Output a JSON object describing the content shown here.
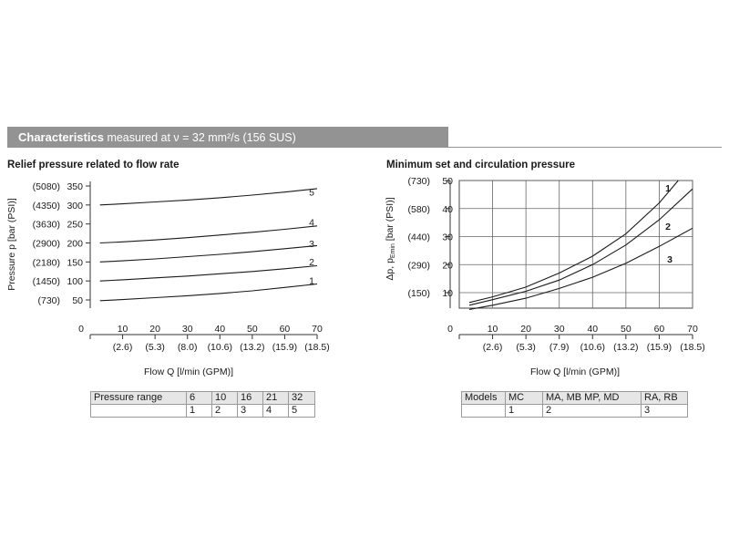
{
  "header": {
    "title": "Characteristics",
    "subtitle": "measured at ν = 32 mm²/s (156 SUS)"
  },
  "charts_meta": {
    "relief": {
      "title": "Relief pressure related to flow rate"
    },
    "minimum": {
      "title": "Minimum set and circulation pressure"
    }
  },
  "chart_data": [
    {
      "type": "line",
      "title": "Relief pressure related to flow rate",
      "xlabel": "Flow Q [l/min (GPM)]",
      "ylabel": "Pressure p [bar (PSI)]",
      "xlim": [
        0,
        70
      ],
      "ylim": [
        0,
        350
      ],
      "x_ticks": [
        10,
        20,
        30,
        40,
        50,
        60,
        70
      ],
      "x_ticks_alt": [
        "(2.6)",
        "(5.3)",
        "(8.0)",
        "(10.6)",
        "(13.2)",
        "(15.9)",
        "(18.5)"
      ],
      "y_ticks": [
        50,
        100,
        150,
        200,
        250,
        300,
        350
      ],
      "y_ticks_alt": [
        "(730)",
        "(1450)",
        "(2180)",
        "(2900)",
        "(3630)",
        "(4350)",
        "(5080)"
      ],
      "origin_label": "0",
      "grid": false,
      "series": [
        {
          "name": "1",
          "x": [
            3,
            10,
            20,
            30,
            40,
            50,
            60,
            70
          ],
          "y": [
            48,
            51,
            56,
            61,
            67,
            74,
            83,
            92
          ]
        },
        {
          "name": "2",
          "x": [
            3,
            10,
            20,
            30,
            40,
            50,
            60,
            70
          ],
          "y": [
            100,
            103,
            108,
            113,
            119,
            125,
            132,
            140
          ]
        },
        {
          "name": "3",
          "x": [
            3,
            10,
            20,
            30,
            40,
            50,
            60,
            70
          ],
          "y": [
            150,
            153,
            158,
            164,
            170,
            177,
            185,
            193
          ]
        },
        {
          "name": "4",
          "x": [
            3,
            10,
            20,
            30,
            40,
            50,
            60,
            70
          ],
          "y": [
            200,
            203,
            208,
            214,
            221,
            228,
            236,
            245
          ]
        },
        {
          "name": "5",
          "x": [
            3,
            10,
            20,
            30,
            40,
            50,
            60,
            70
          ],
          "y": [
            300,
            303,
            308,
            313,
            319,
            326,
            334,
            343
          ]
        }
      ]
    },
    {
      "type": "line",
      "title": "Minimum set and circulation pressure",
      "xlabel": "Flow Q [l/min (GPM)]",
      "ylabel": "Δp, pEmin [bar (PSI)]",
      "ylabel_main": "Δp, p",
      "ylabel_sub": "Emin",
      "ylabel_units": " [bar (PSI)]",
      "xlim": [
        0,
        70
      ],
      "ylim": [
        0,
        50
      ],
      "x_ticks": [
        10,
        20,
        30,
        40,
        50,
        60,
        70
      ],
      "x_ticks_alt": [
        "(2.6)",
        "(5.3)",
        "(7.9)",
        "(10.6)",
        "(13.2)",
        "(15.9)",
        "(18.5)"
      ],
      "y_ticks": [
        10,
        20,
        30,
        40,
        50
      ],
      "y_ticks_alt": [
        "(150)",
        "(290)",
        "(440)",
        "(580)",
        "(730)"
      ],
      "origin_label": "0",
      "grid": true,
      "series": [
        {
          "name": "1",
          "x": [
            3,
            10,
            20,
            30,
            40,
            50,
            60,
            70
          ],
          "y": [
            6.5,
            8.5,
            12,
            17,
            23,
            31,
            42,
            56
          ]
        },
        {
          "name": "2",
          "x": [
            3,
            10,
            20,
            30,
            40,
            50,
            60,
            70
          ],
          "y": [
            5.5,
            7.5,
            10.5,
            14.5,
            20,
            27,
            36,
            47
          ]
        },
        {
          "name": "3",
          "x": [
            3,
            10,
            20,
            30,
            40,
            50,
            60,
            70
          ],
          "y": [
            4,
            5.5,
            8,
            11.5,
            15.5,
            20.5,
            26.5,
            33
          ]
        }
      ]
    }
  ],
  "tables": {
    "relief": {
      "row1": [
        "Pressure range",
        "6",
        "10",
        "16",
        "21",
        "32"
      ],
      "row2": [
        "",
        "1",
        "2",
        "3",
        "4",
        "5"
      ]
    },
    "minimum": {
      "row1": [
        "Models",
        "MC",
        "MA, MB MP, MD",
        "RA, RB"
      ],
      "row2": [
        "",
        "1",
        "2",
        "3"
      ]
    }
  }
}
